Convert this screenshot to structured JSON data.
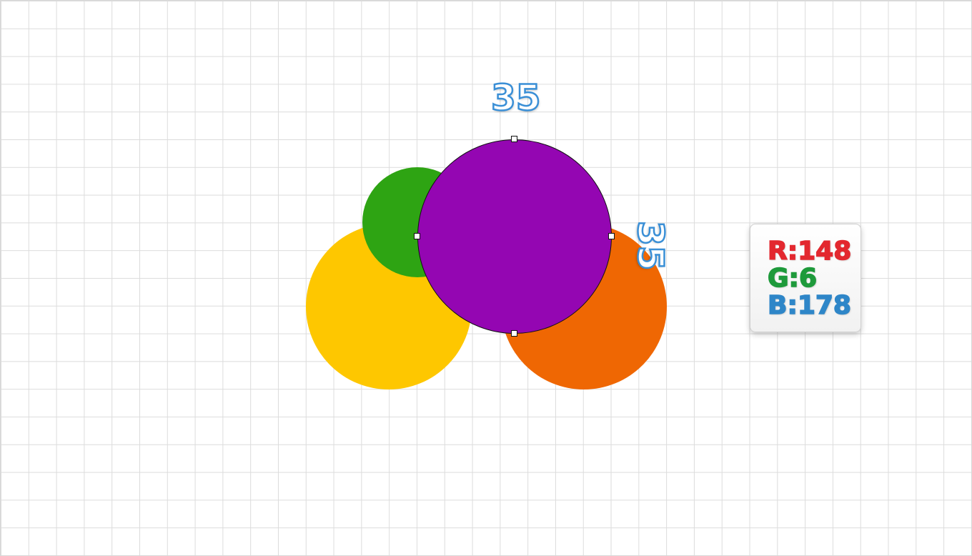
{
  "shapes": [
    {
      "id": "yellow",
      "color": "#fec700"
    },
    {
      "id": "orange",
      "color": "#ef6703"
    },
    {
      "id": "green",
      "color": "#2ea413"
    },
    {
      "id": "purple",
      "color": "#9406b2"
    }
  ],
  "selection": {
    "width_label": "35",
    "height_label": "35"
  },
  "rgb_panel": {
    "r_text": "R:148",
    "g_text": "G:6",
    "b_text": "B:178",
    "r_color": "#e3282f",
    "g_color": "#1e9a3b",
    "b_color": "#2e86c8"
  }
}
